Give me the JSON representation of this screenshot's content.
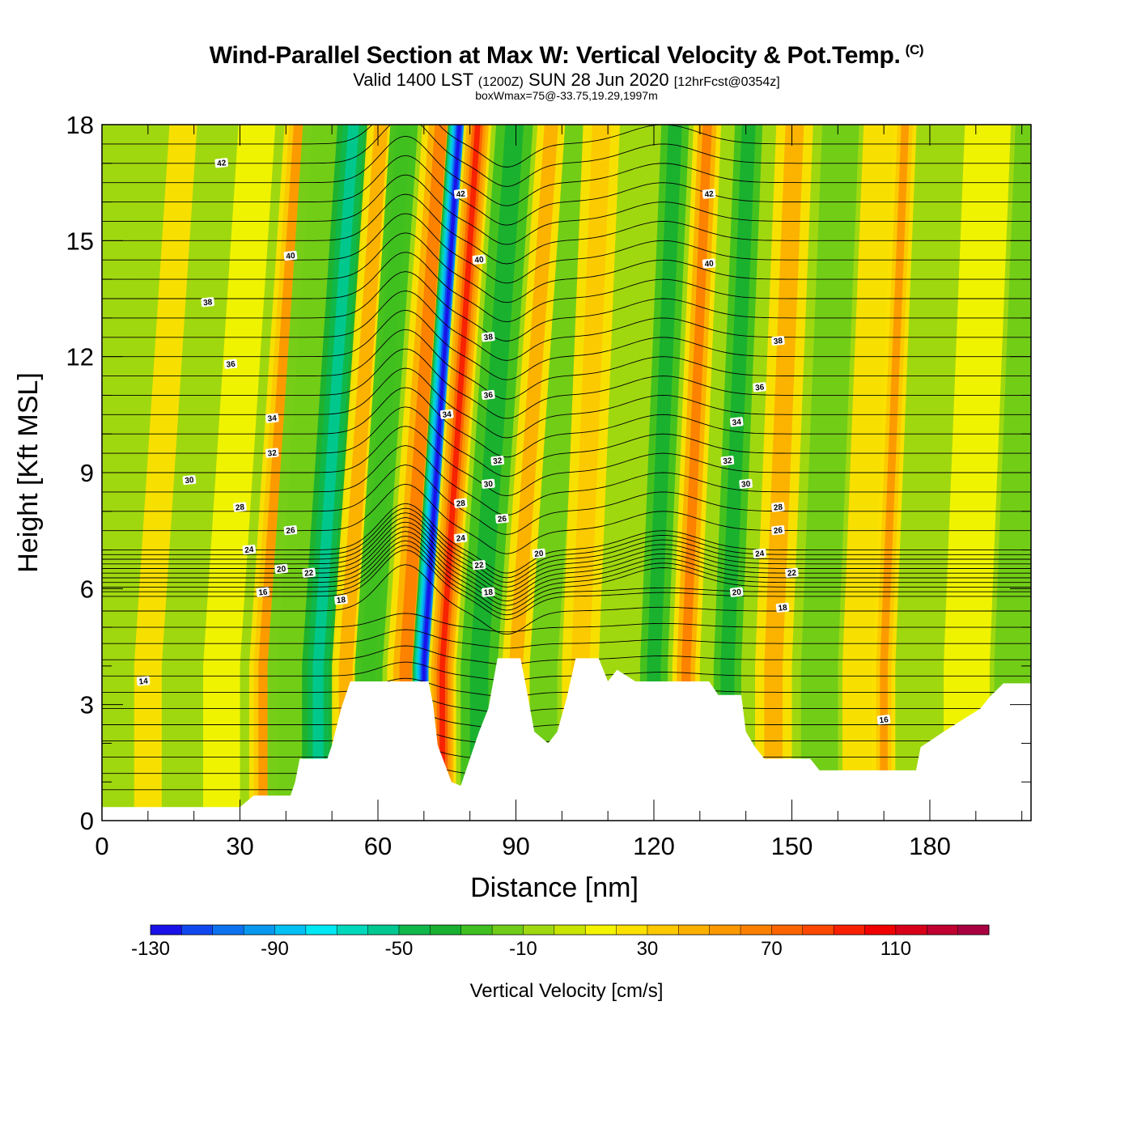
{
  "title": {
    "main": "Wind-Parallel Section at Max W: Vertical Velocity & Pot.Temp.",
    "copyright": "(C)",
    "valid_prefix": "Valid 1400 LST",
    "valid_zulu": "(1200Z)",
    "valid_date": "SUN 28 Jun 2020",
    "forecast": "[12hrFcst@0354z]",
    "box_info": "boxWmax=75@-33.75,19.29,1997m"
  },
  "chart_data": {
    "type": "heatmap",
    "xlabel": "Distance [nm]",
    "ylabel": "Height [Kft MSL]",
    "xlim": [
      0,
      202
    ],
    "ylim": [
      0,
      18
    ],
    "x_ticks": [
      0,
      30,
      60,
      90,
      120,
      150,
      180
    ],
    "y_ticks": [
      0,
      3,
      6,
      9,
      12,
      15,
      18
    ],
    "colorbar": {
      "title": "Vertical Velocity [cm/s]",
      "levels": [
        -130,
        -120,
        -110,
        -100,
        -90,
        -80,
        -70,
        -60,
        -50,
        -40,
        -30,
        -20,
        -10,
        0,
        10,
        20,
        30,
        40,
        50,
        60,
        70,
        80,
        90,
        100,
        110,
        120,
        130,
        140
      ],
      "labeled_ticks": [
        "-130",
        "-90",
        "-50",
        "-10",
        "30",
        "70",
        "110"
      ],
      "colors": [
        "#1a10e8",
        "#1048f0",
        "#0c72f0",
        "#0898f0",
        "#04c0f4",
        "#00e8f4",
        "#00d8bc",
        "#00c890",
        "#10b84c",
        "#18b030",
        "#40c020",
        "#70cc18",
        "#a0d810",
        "#c8e400",
        "#f4f400",
        "#fce000",
        "#fcc800",
        "#fcb000",
        "#fc9800",
        "#fc8000",
        "#fc6400",
        "#fc4800",
        "#f82000",
        "#f00000",
        "#d80018",
        "#c00030",
        "#a80040"
      ]
    },
    "terrain_kft": [
      [
        0,
        0.35
      ],
      [
        30,
        0.35
      ],
      [
        33,
        0.65
      ],
      [
        41,
        0.65
      ],
      [
        42,
        1.0
      ],
      [
        43,
        1.6
      ],
      [
        49,
        1.6
      ],
      [
        50,
        1.95
      ],
      [
        52,
        2.9
      ],
      [
        54,
        3.6
      ],
      [
        71,
        3.6
      ],
      [
        72,
        3.0
      ],
      [
        73,
        1.95
      ],
      [
        76,
        1.0
      ],
      [
        78,
        0.9
      ],
      [
        80,
        1.6
      ],
      [
        82,
        2.3
      ],
      [
        84,
        2.9
      ],
      [
        86,
        4.2
      ],
      [
        91,
        4.2
      ],
      [
        92,
        3.6
      ],
      [
        94,
        2.3
      ],
      [
        97,
        2.0
      ],
      [
        99,
        2.3
      ],
      [
        101,
        3.15
      ],
      [
        103,
        4.2
      ],
      [
        108,
        4.2
      ],
      [
        110,
        3.6
      ],
      [
        112,
        3.9
      ],
      [
        116,
        3.6
      ],
      [
        132,
        3.6
      ],
      [
        134,
        3.25
      ],
      [
        139,
        3.25
      ],
      [
        140,
        2.3
      ],
      [
        142,
        1.9
      ],
      [
        144,
        1.6
      ],
      [
        154,
        1.6
      ],
      [
        156,
        1.3
      ],
      [
        177,
        1.3
      ],
      [
        178,
        1.9
      ],
      [
        183,
        2.3
      ],
      [
        187,
        2.6
      ],
      [
        191,
        2.9
      ],
      [
        193,
        3.2
      ],
      [
        196,
        3.55
      ],
      [
        202,
        3.55
      ]
    ],
    "w_bands": [
      {
        "x": 4,
        "w": -10,
        "width": 3
      },
      {
        "x": 10,
        "w": 20,
        "width": 3
      },
      {
        "x": 18,
        "w": -10,
        "width": 4
      },
      {
        "x": 26,
        "w": 10,
        "width": 4
      },
      {
        "x": 35,
        "w": 50,
        "width": 3
      },
      {
        "x": 40,
        "w": -20,
        "width": 4
      },
      {
        "x": 47,
        "w": -60,
        "width": 3.5
      },
      {
        "x": 53,
        "w": 40,
        "width": 3
      },
      {
        "x": 58,
        "w": -30,
        "width": 3
      },
      {
        "x": 66,
        "w": 60,
        "width": 4
      },
      {
        "x": 70,
        "w": -130,
        "width": 2.5
      },
      {
        "x": 74,
        "w": 90,
        "width": 3
      },
      {
        "x": 82,
        "w": -40,
        "width": 4
      },
      {
        "x": 90,
        "w": 40,
        "width": 3
      },
      {
        "x": 96,
        "w": -20,
        "width": 3
      },
      {
        "x": 104,
        "w": 30,
        "width": 4
      },
      {
        "x": 112,
        "w": -10,
        "width": 4
      },
      {
        "x": 120,
        "w": -40,
        "width": 3
      },
      {
        "x": 127,
        "w": 60,
        "width": 3
      },
      {
        "x": 136,
        "w": -40,
        "width": 3
      },
      {
        "x": 146,
        "w": 40,
        "width": 4
      },
      {
        "x": 156,
        "w": -20,
        "width": 4
      },
      {
        "x": 165,
        "w": 20,
        "width": 4
      },
      {
        "x": 170,
        "w": 50,
        "width": 2.5
      },
      {
        "x": 178,
        "w": -10,
        "width": 4
      },
      {
        "x": 188,
        "w": 10,
        "width": 5
      },
      {
        "x": 198,
        "w": -20,
        "width": 4
      }
    ],
    "theta_labels": [
      {
        "text": "42",
        "x": 26,
        "y": 17.0
      },
      {
        "text": "42",
        "x": 78,
        "y": 16.2
      },
      {
        "text": "42",
        "x": 132,
        "y": 16.2
      },
      {
        "text": "40",
        "x": 41,
        "y": 14.6
      },
      {
        "text": "40",
        "x": 82,
        "y": 14.5
      },
      {
        "text": "40",
        "x": 132,
        "y": 14.4
      },
      {
        "text": "38",
        "x": 23,
        "y": 13.4
      },
      {
        "text": "38",
        "x": 84,
        "y": 12.5
      },
      {
        "text": "38",
        "x": 147,
        "y": 12.4
      },
      {
        "text": "36",
        "x": 28,
        "y": 11.8
      },
      {
        "text": "36",
        "x": 84,
        "y": 11.0
      },
      {
        "text": "36",
        "x": 143,
        "y": 11.2
      },
      {
        "text": "34",
        "x": 37,
        "y": 10.4
      },
      {
        "text": "34",
        "x": 75,
        "y": 10.5
      },
      {
        "text": "34",
        "x": 138,
        "y": 10.3
      },
      {
        "text": "32",
        "x": 37,
        "y": 9.5
      },
      {
        "text": "32",
        "x": 86,
        "y": 9.3
      },
      {
        "text": "32",
        "x": 136,
        "y": 9.3
      },
      {
        "text": "30",
        "x": 19,
        "y": 8.8
      },
      {
        "text": "30",
        "x": 84,
        "y": 8.7
      },
      {
        "text": "30",
        "x": 140,
        "y": 8.7
      },
      {
        "text": "28",
        "x": 30,
        "y": 8.1
      },
      {
        "text": "28",
        "x": 78,
        "y": 8.2
      },
      {
        "text": "28",
        "x": 147,
        "y": 8.1
      },
      {
        "text": "26",
        "x": 41,
        "y": 7.5
      },
      {
        "text": "26",
        "x": 87,
        "y": 7.8
      },
      {
        "text": "26",
        "x": 147,
        "y": 7.5
      },
      {
        "text": "24",
        "x": 32,
        "y": 7.0
      },
      {
        "text": "24",
        "x": 78,
        "y": 7.3
      },
      {
        "text": "24",
        "x": 143,
        "y": 6.9
      },
      {
        "text": "22",
        "x": 45,
        "y": 6.4
      },
      {
        "text": "22",
        "x": 82,
        "y": 6.6
      },
      {
        "text": "22",
        "x": 150,
        "y": 6.4
      },
      {
        "text": "20",
        "x": 39,
        "y": 6.5
      },
      {
        "text": "20",
        "x": 95,
        "y": 6.9
      },
      {
        "text": "20",
        "x": 138,
        "y": 5.9
      },
      {
        "text": "18",
        "x": 52,
        "y": 5.7
      },
      {
        "text": "18",
        "x": 84,
        "y": 5.9
      },
      {
        "text": "18",
        "x": 148,
        "y": 5.5
      },
      {
        "text": "16",
        "x": 35,
        "y": 5.9
      },
      {
        "text": "16",
        "x": 170,
        "y": 2.6
      },
      {
        "text": "14",
        "x": 9,
        "y": 3.6
      }
    ]
  }
}
